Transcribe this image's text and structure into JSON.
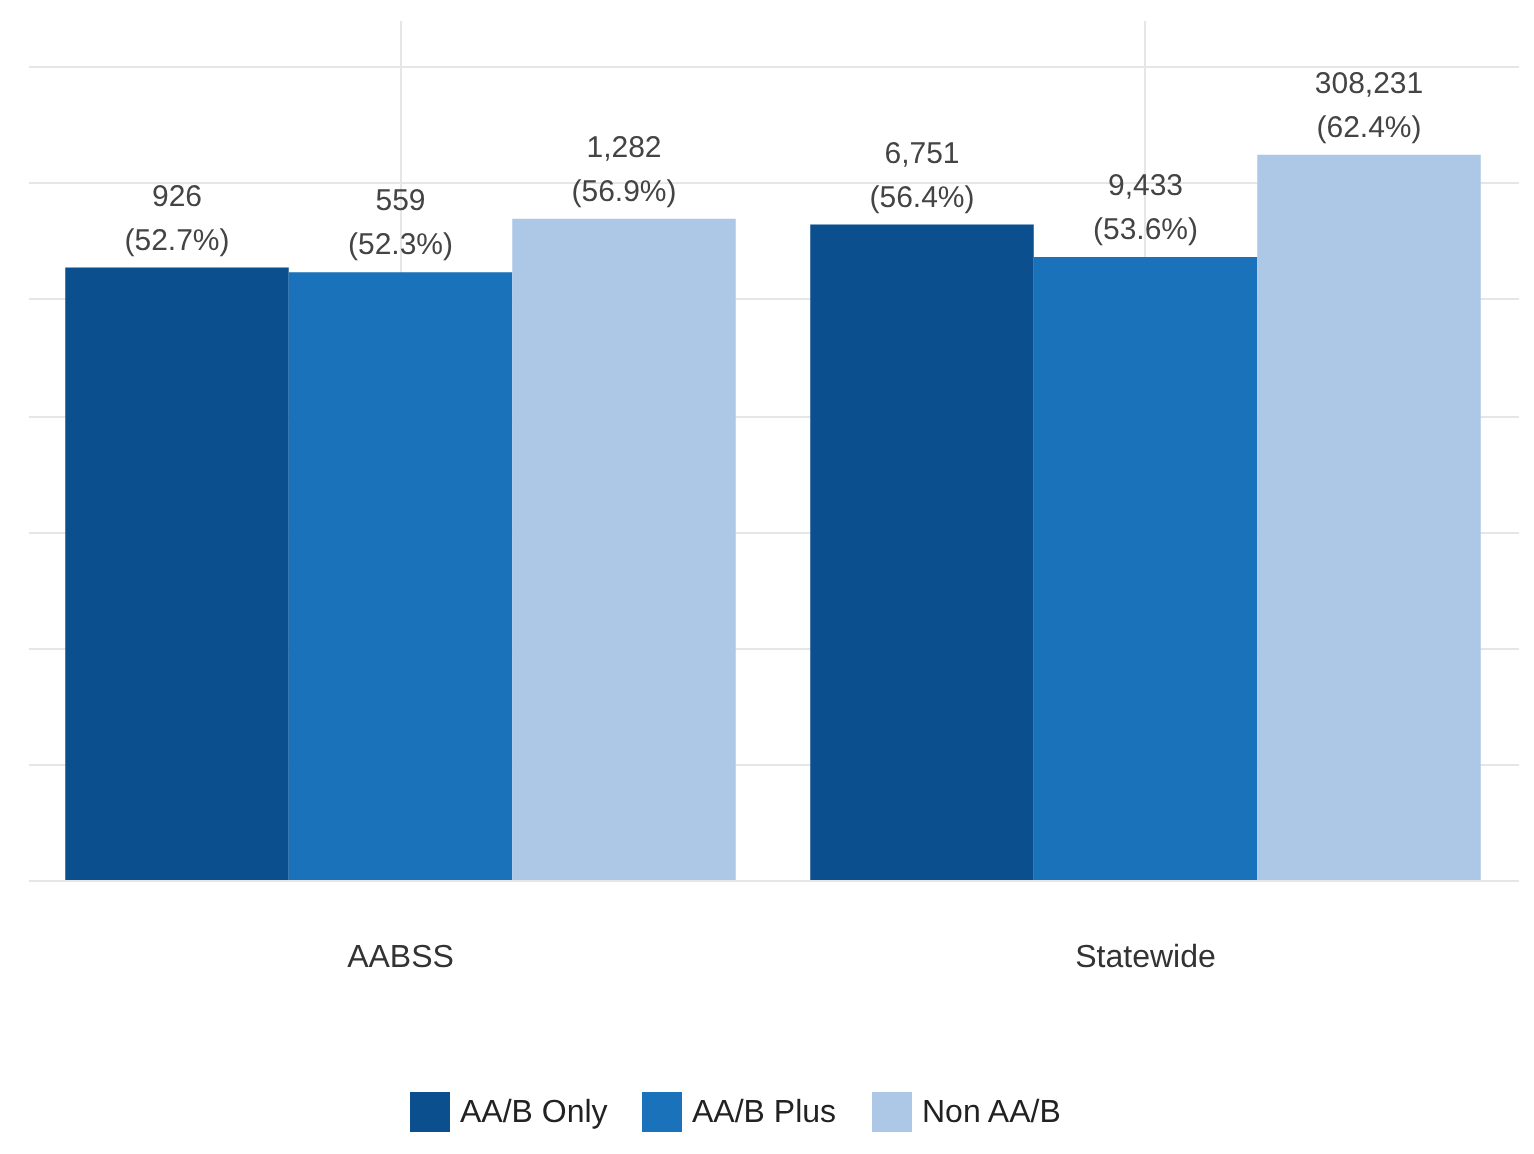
{
  "chart_data": {
    "type": "bar",
    "categories": [
      "AABSS",
      "Statewide"
    ],
    "series": [
      {
        "name": "AA/B Only",
        "color": "#0b4f8f",
        "values": [
          52.7,
          56.4
        ],
        "value_labels": [
          "926\n(52.7%)",
          "6,751\n(56.4%)"
        ]
      },
      {
        "name": "AA/B Plus",
        "color": "#1a73ba",
        "values": [
          52.3,
          53.6
        ],
        "value_labels": [
          "559\n(52.3%)",
          "9,433\n(53.6%)"
        ]
      },
      {
        "name": "Non AA/B",
        "color": "#adc8e6",
        "values": [
          56.9,
          62.4
        ],
        "value_labels": [
          "1,282\n(56.9%)",
          "308,231\n(62.4%)"
        ]
      }
    ],
    "ylim": [
      0,
      74
    ],
    "yticks": [
      {
        "value": 0,
        "label": null
      },
      {
        "value": 10,
        "label": null
      },
      {
        "value": 20,
        "label": null
      },
      {
        "value": 30,
        "label": null
      },
      {
        "value": 40,
        "label": null
      },
      {
        "value": 50,
        "label": null
      },
      {
        "value": 60,
        "label": null
      },
      {
        "value": 70,
        "label": null
      }
    ],
    "tick_labels": "x",
    "grid": true,
    "legend": "bottom"
  }
}
